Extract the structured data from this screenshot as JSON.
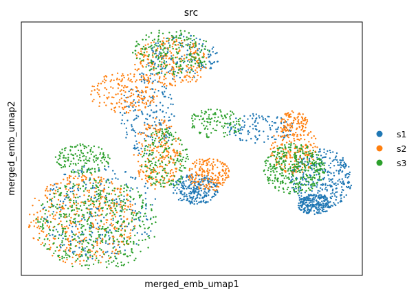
{
  "chart_data": {
    "type": "scatter",
    "title": "src",
    "xlabel": "merged_emb_umap1",
    "ylabel": "merged_emb_umap2",
    "xlim": [
      0,
      100
    ],
    "ylim": [
      0,
      100
    ],
    "grid": false,
    "ticks": false,
    "legend": {
      "position": "right",
      "entries": [
        {
          "name": "s1",
          "color": "#1f77b4"
        },
        {
          "name": "s2",
          "color": "#ff7f0e"
        },
        {
          "name": "s3",
          "color": "#2ca02c"
        }
      ]
    },
    "series_draw_order": [
      "s1",
      "s2",
      "s3"
    ],
    "series": [
      {
        "name": "s1",
        "color": "#1f77b4",
        "regions": [
          {
            "cx": 23,
            "cy": 25,
            "rx": 17,
            "ry": 19,
            "weight": 0.18
          },
          {
            "cx": 37,
            "cy": 64,
            "rx": 8,
            "ry": 17,
            "weight": 0.12
          },
          {
            "cx": 47,
            "cy": 86,
            "rx": 11,
            "ry": 9,
            "weight": 0.1
          },
          {
            "cx": 51,
            "cy": 34,
            "rx": 7,
            "ry": 6,
            "weight": 0.16
          },
          {
            "cx": 70,
            "cy": 58,
            "rx": 10,
            "ry": 6,
            "weight": 0.08
          },
          {
            "cx": 88,
            "cy": 38,
            "rx": 9,
            "ry": 12,
            "weight": 0.22
          },
          {
            "cx": 86,
            "cy": 28,
            "rx": 5,
            "ry": 4,
            "weight": 0.14
          }
        ]
      },
      {
        "name": "s2",
        "color": "#ff7f0e",
        "regions": [
          {
            "cx": 18,
            "cy": 22,
            "rx": 16,
            "ry": 18,
            "weight": 0.28
          },
          {
            "cx": 40,
            "cy": 48,
            "rx": 7,
            "ry": 14,
            "weight": 0.14
          },
          {
            "cx": 44,
            "cy": 84,
            "rx": 11,
            "ry": 10,
            "weight": 0.16
          },
          {
            "cx": 55,
            "cy": 40,
            "rx": 6,
            "ry": 7,
            "weight": 0.12
          },
          {
            "cx": 80,
            "cy": 50,
            "rx": 7,
            "ry": 10,
            "weight": 0.12
          },
          {
            "cx": 80,
            "cy": 60,
            "rx": 4,
            "ry": 5,
            "weight": 0.06
          },
          {
            "cx": 30,
            "cy": 72,
            "rx": 10,
            "ry": 8,
            "weight": 0.12
          }
        ]
      },
      {
        "name": "s3",
        "color": "#2ca02c",
        "regions": [
          {
            "cx": 22,
            "cy": 20,
            "rx": 18,
            "ry": 18,
            "weight": 0.32
          },
          {
            "cx": 44,
            "cy": 88,
            "rx": 12,
            "ry": 9,
            "weight": 0.14
          },
          {
            "cx": 42,
            "cy": 46,
            "rx": 7,
            "ry": 12,
            "weight": 0.12
          },
          {
            "cx": 80,
            "cy": 42,
            "rx": 9,
            "ry": 10,
            "weight": 0.24
          },
          {
            "cx": 57,
            "cy": 60,
            "rx": 8,
            "ry": 6,
            "weight": 0.08
          },
          {
            "cx": 18,
            "cy": 46,
            "rx": 8,
            "ry": 6,
            "weight": 0.1
          }
        ]
      }
    ]
  }
}
